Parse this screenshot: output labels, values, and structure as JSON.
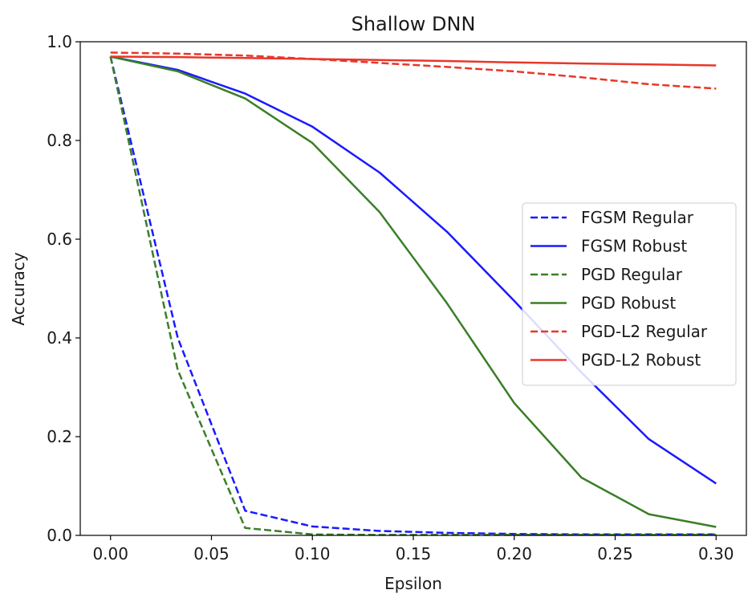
{
  "chart_data": {
    "type": "line",
    "title": "Shallow DNN",
    "xlabel": "Epsilon",
    "ylabel": "Accuracy",
    "xlim": [
      -0.015,
      0.315
    ],
    "ylim": [
      0.0,
      1.0
    ],
    "xticks": [
      0.0,
      0.05,
      0.1,
      0.15,
      0.2,
      0.25,
      0.3
    ],
    "xtick_labels": [
      "0.00",
      "0.05",
      "0.10",
      "0.15",
      "0.20",
      "0.25",
      "0.30"
    ],
    "yticks": [
      0.0,
      0.2,
      0.4,
      0.6,
      0.8,
      1.0
    ],
    "ytick_labels": [
      "0.0",
      "0.2",
      "0.4",
      "0.6",
      "0.8",
      "1.0"
    ],
    "grid": false,
    "legend_position": "center-right",
    "x": [
      0.0,
      0.0333,
      0.0667,
      0.1,
      0.1333,
      0.1667,
      0.2,
      0.2333,
      0.2667,
      0.3
    ],
    "series": [
      {
        "name": "FGSM Regular",
        "color": "#1a1aff",
        "dash": true,
        "values": [
          0.97,
          0.4,
          0.05,
          0.018,
          0.009,
          0.005,
          0.003,
          0.002,
          0.002,
          0.002
        ]
      },
      {
        "name": "FGSM Robust",
        "color": "#1a1aff",
        "dash": false,
        "values": [
          0.97,
          0.943,
          0.895,
          0.828,
          0.735,
          0.615,
          0.475,
          0.33,
          0.195,
          0.105
        ]
      },
      {
        "name": "PGD Regular",
        "color": "#3a7f27",
        "dash": true,
        "values": [
          0.97,
          0.335,
          0.015,
          0.002,
          0.001,
          0.001,
          0.001,
          0.001,
          0.001,
          0.001
        ]
      },
      {
        "name": "PGD Robust",
        "color": "#3a7f27",
        "dash": false,
        "values": [
          0.97,
          0.94,
          0.885,
          0.795,
          0.655,
          0.47,
          0.268,
          0.117,
          0.043,
          0.017
        ]
      },
      {
        "name": "PGD-L2 Regular",
        "color": "#e8372a",
        "dash": true,
        "values": [
          0.978,
          0.976,
          0.972,
          0.965,
          0.957,
          0.949,
          0.94,
          0.928,
          0.914,
          0.905
        ]
      },
      {
        "name": "PGD-L2 Robust",
        "color": "#e8372a",
        "dash": false,
        "values": [
          0.97,
          0.969,
          0.967,
          0.965,
          0.963,
          0.961,
          0.958,
          0.956,
          0.954,
          0.952
        ]
      }
    ]
  }
}
